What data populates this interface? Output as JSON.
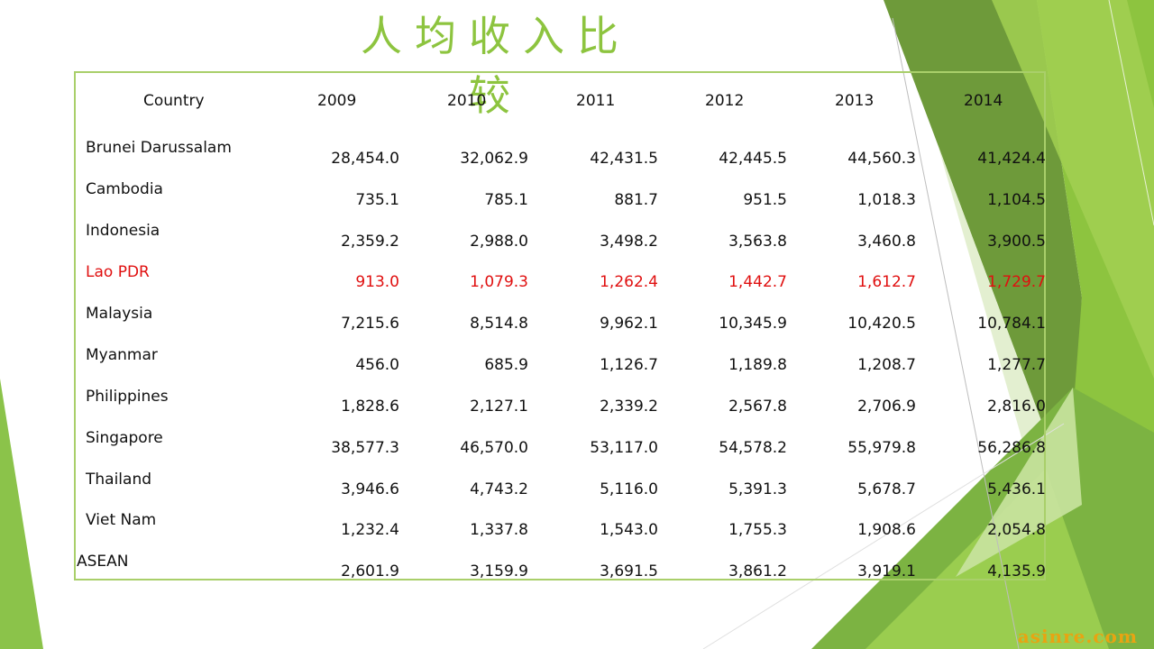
{
  "slide": {
    "title": "人均收入比较",
    "watermark": "asinre.com"
  },
  "table": {
    "header": [
      "Country",
      "2009",
      "2010",
      "2011",
      "2012",
      "2013",
      "2014"
    ],
    "rows": [
      {
        "country": "Brunei Darussalam",
        "values": [
          "28,454.0",
          "32,062.9",
          "42,431.5",
          "42,445.5",
          "44,560.3",
          "41,424.4"
        ],
        "highlight": false
      },
      {
        "country": "Cambodia",
        "values": [
          "735.1",
          "785.1",
          "881.7",
          "951.5",
          "1,018.3",
          "1,104.5"
        ],
        "highlight": false
      },
      {
        "country": "Indonesia",
        "values": [
          "2,359.2",
          "2,988.0",
          "3,498.2",
          "3,563.8",
          "3,460.8",
          "3,900.5"
        ],
        "highlight": false
      },
      {
        "country": "Lao PDR",
        "values": [
          "913.0",
          "1,079.3",
          "1,262.4",
          "1,442.7",
          "1,612.7",
          "1,729.7"
        ],
        "highlight": true
      },
      {
        "country": "Malaysia",
        "values": [
          "7,215.6",
          "8,514.8",
          "9,962.1",
          "10,345.9",
          "10,420.5",
          "10,784.1"
        ],
        "highlight": false
      },
      {
        "country": "Myanmar",
        "values": [
          "456.0",
          "685.9",
          "1,126.7",
          "1,189.8",
          "1,208.7",
          "1,277.7"
        ],
        "highlight": false
      },
      {
        "country": "Philippines",
        "values": [
          "1,828.6",
          "2,127.1",
          "2,339.2",
          "2,567.8",
          "2,706.9",
          "2,816.0"
        ],
        "highlight": false
      },
      {
        "country": "Singapore",
        "values": [
          "38,577.3",
          "46,570.0",
          "53,117.0",
          "54,578.2",
          "55,979.8",
          "56,286.8"
        ],
        "highlight": false
      },
      {
        "country": "Thailand",
        "values": [
          "3,946.6",
          "4,743.2",
          "5,116.0",
          "5,391.3",
          "5,678.7",
          "5,436.1"
        ],
        "highlight": false
      },
      {
        "country": "Viet Nam",
        "values": [
          "1,232.4",
          "1,337.8",
          "1,543.0",
          "1,755.3",
          "1,908.6",
          "2,054.8"
        ],
        "highlight": false
      },
      {
        "country": "ASEAN",
        "values": [
          "2,601.9",
          "3,159.9",
          "3,691.5",
          "3,861.2",
          "3,919.1",
          "4,135.9"
        ],
        "highlight": false
      }
    ]
  },
  "colors": {
    "title": "#8dc43f",
    "highlight": "#e01010",
    "border": "#a9cf6a",
    "watermark": "#e8a412"
  }
}
